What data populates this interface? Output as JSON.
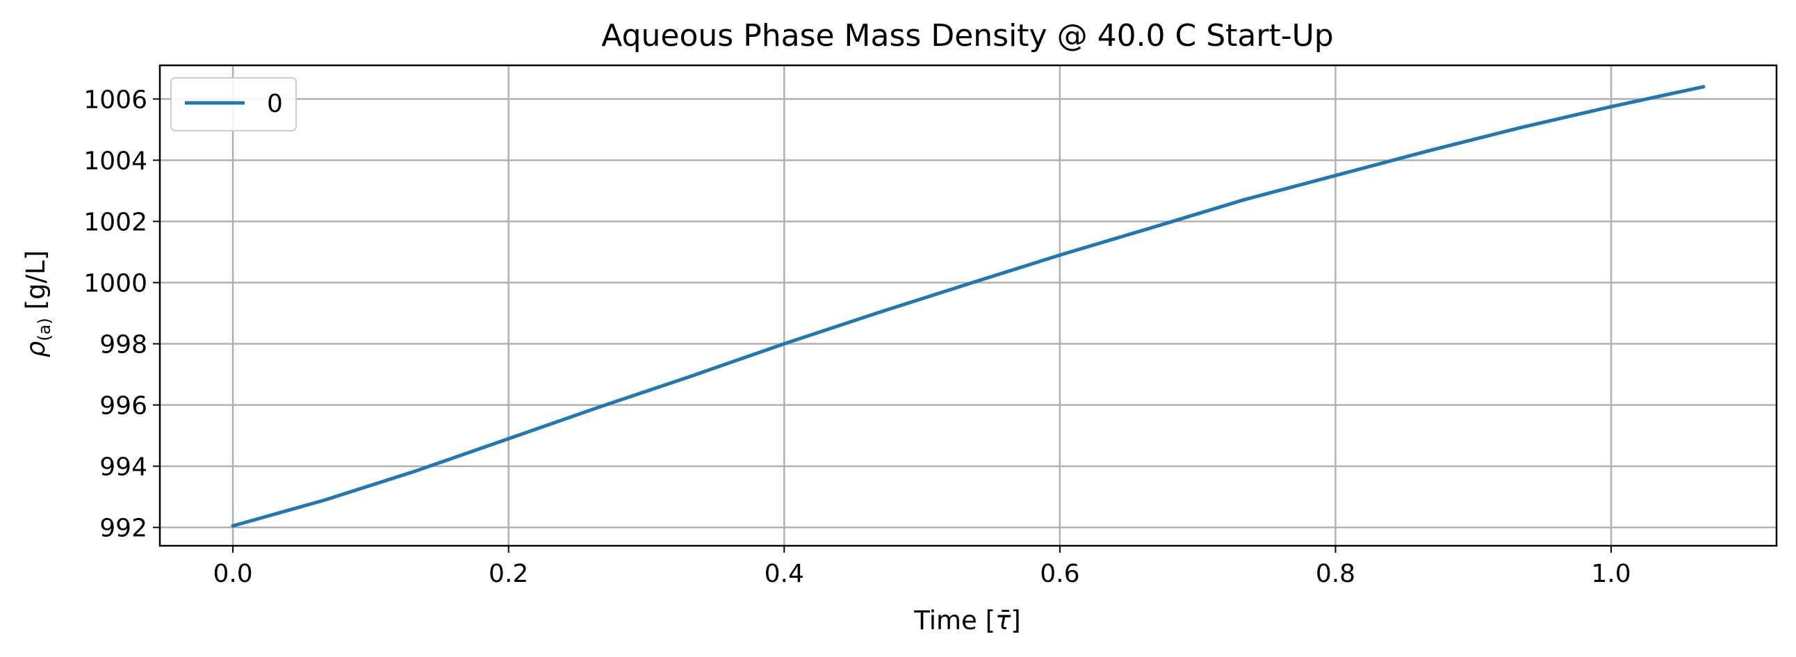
{
  "chart_data": {
    "type": "line",
    "title": "Aqueous Phase Mass Density @ 40.0 C Start-Up",
    "xlabel_prefix": "Time [",
    "xlabel_symbol": "τ̄",
    "xlabel_suffix": "]",
    "ylabel_symbol": "ρ",
    "ylabel_subscript": "(a)",
    "ylabel_unit": " [g/L]",
    "xlim": [
      -0.053,
      1.12
    ],
    "ylim": [
      991.4,
      1007.1
    ],
    "xticks": [
      "0.0",
      "0.2",
      "0.4",
      "0.6",
      "0.8",
      "1.0"
    ],
    "yticks": [
      "992",
      "994",
      "996",
      "998",
      "1000",
      "1002",
      "1004",
      "1006"
    ],
    "grid": true,
    "legend_position": "upper-left",
    "colors": {
      "series_0": "#1f77b4",
      "grid": "#b0b0b0",
      "axes": "#000000"
    },
    "series": [
      {
        "name": "0",
        "x": [
          0.0,
          0.067,
          0.133,
          0.2,
          0.267,
          0.333,
          0.4,
          0.467,
          0.533,
          0.6,
          0.667,
          0.733,
          0.8,
          0.867,
          0.933,
          1.0,
          1.067
        ],
        "y": [
          992.05,
          992.9,
          993.85,
          994.9,
          995.95,
          996.95,
          998.0,
          999.0,
          999.95,
          1000.9,
          1001.8,
          1002.7,
          1003.5,
          1004.3,
          1005.05,
          1005.75,
          1006.4
        ]
      }
    ]
  }
}
